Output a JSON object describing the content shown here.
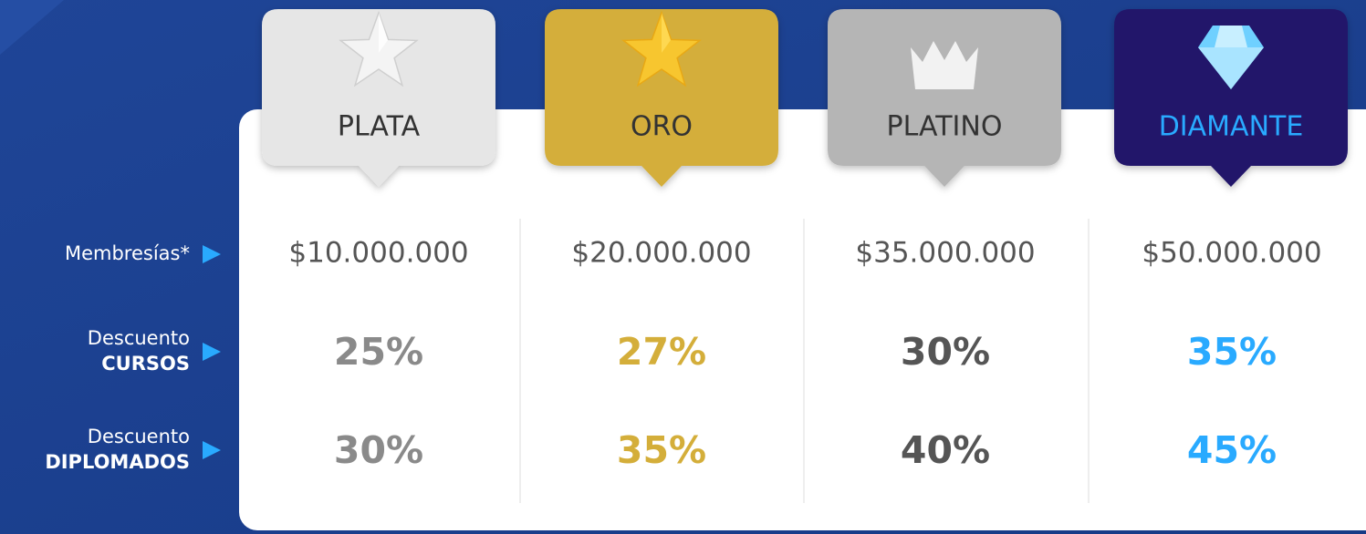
{
  "row_labels": [
    {
      "line1": "Membresías*"
    },
    {
      "line1": "Descuento",
      "line2": "CURSOS"
    },
    {
      "line1": "Descuento",
      "line2": "DIPLOMADOS"
    }
  ],
  "tiers": [
    {
      "name": "PLATA",
      "price": "$10.000.000",
      "courses": "25%",
      "diplomas": "30%"
    },
    {
      "name": "ORO",
      "price": "$20.000.000",
      "courses": "27%",
      "diplomas": "35%"
    },
    {
      "name": "PLATINO",
      "price": "$35.000.000",
      "courses": "30%",
      "diplomas": "40%"
    },
    {
      "name": "DIAMANTE",
      "price": "$50.000.000",
      "courses": "35%",
      "diplomas": "45%"
    }
  ]
}
